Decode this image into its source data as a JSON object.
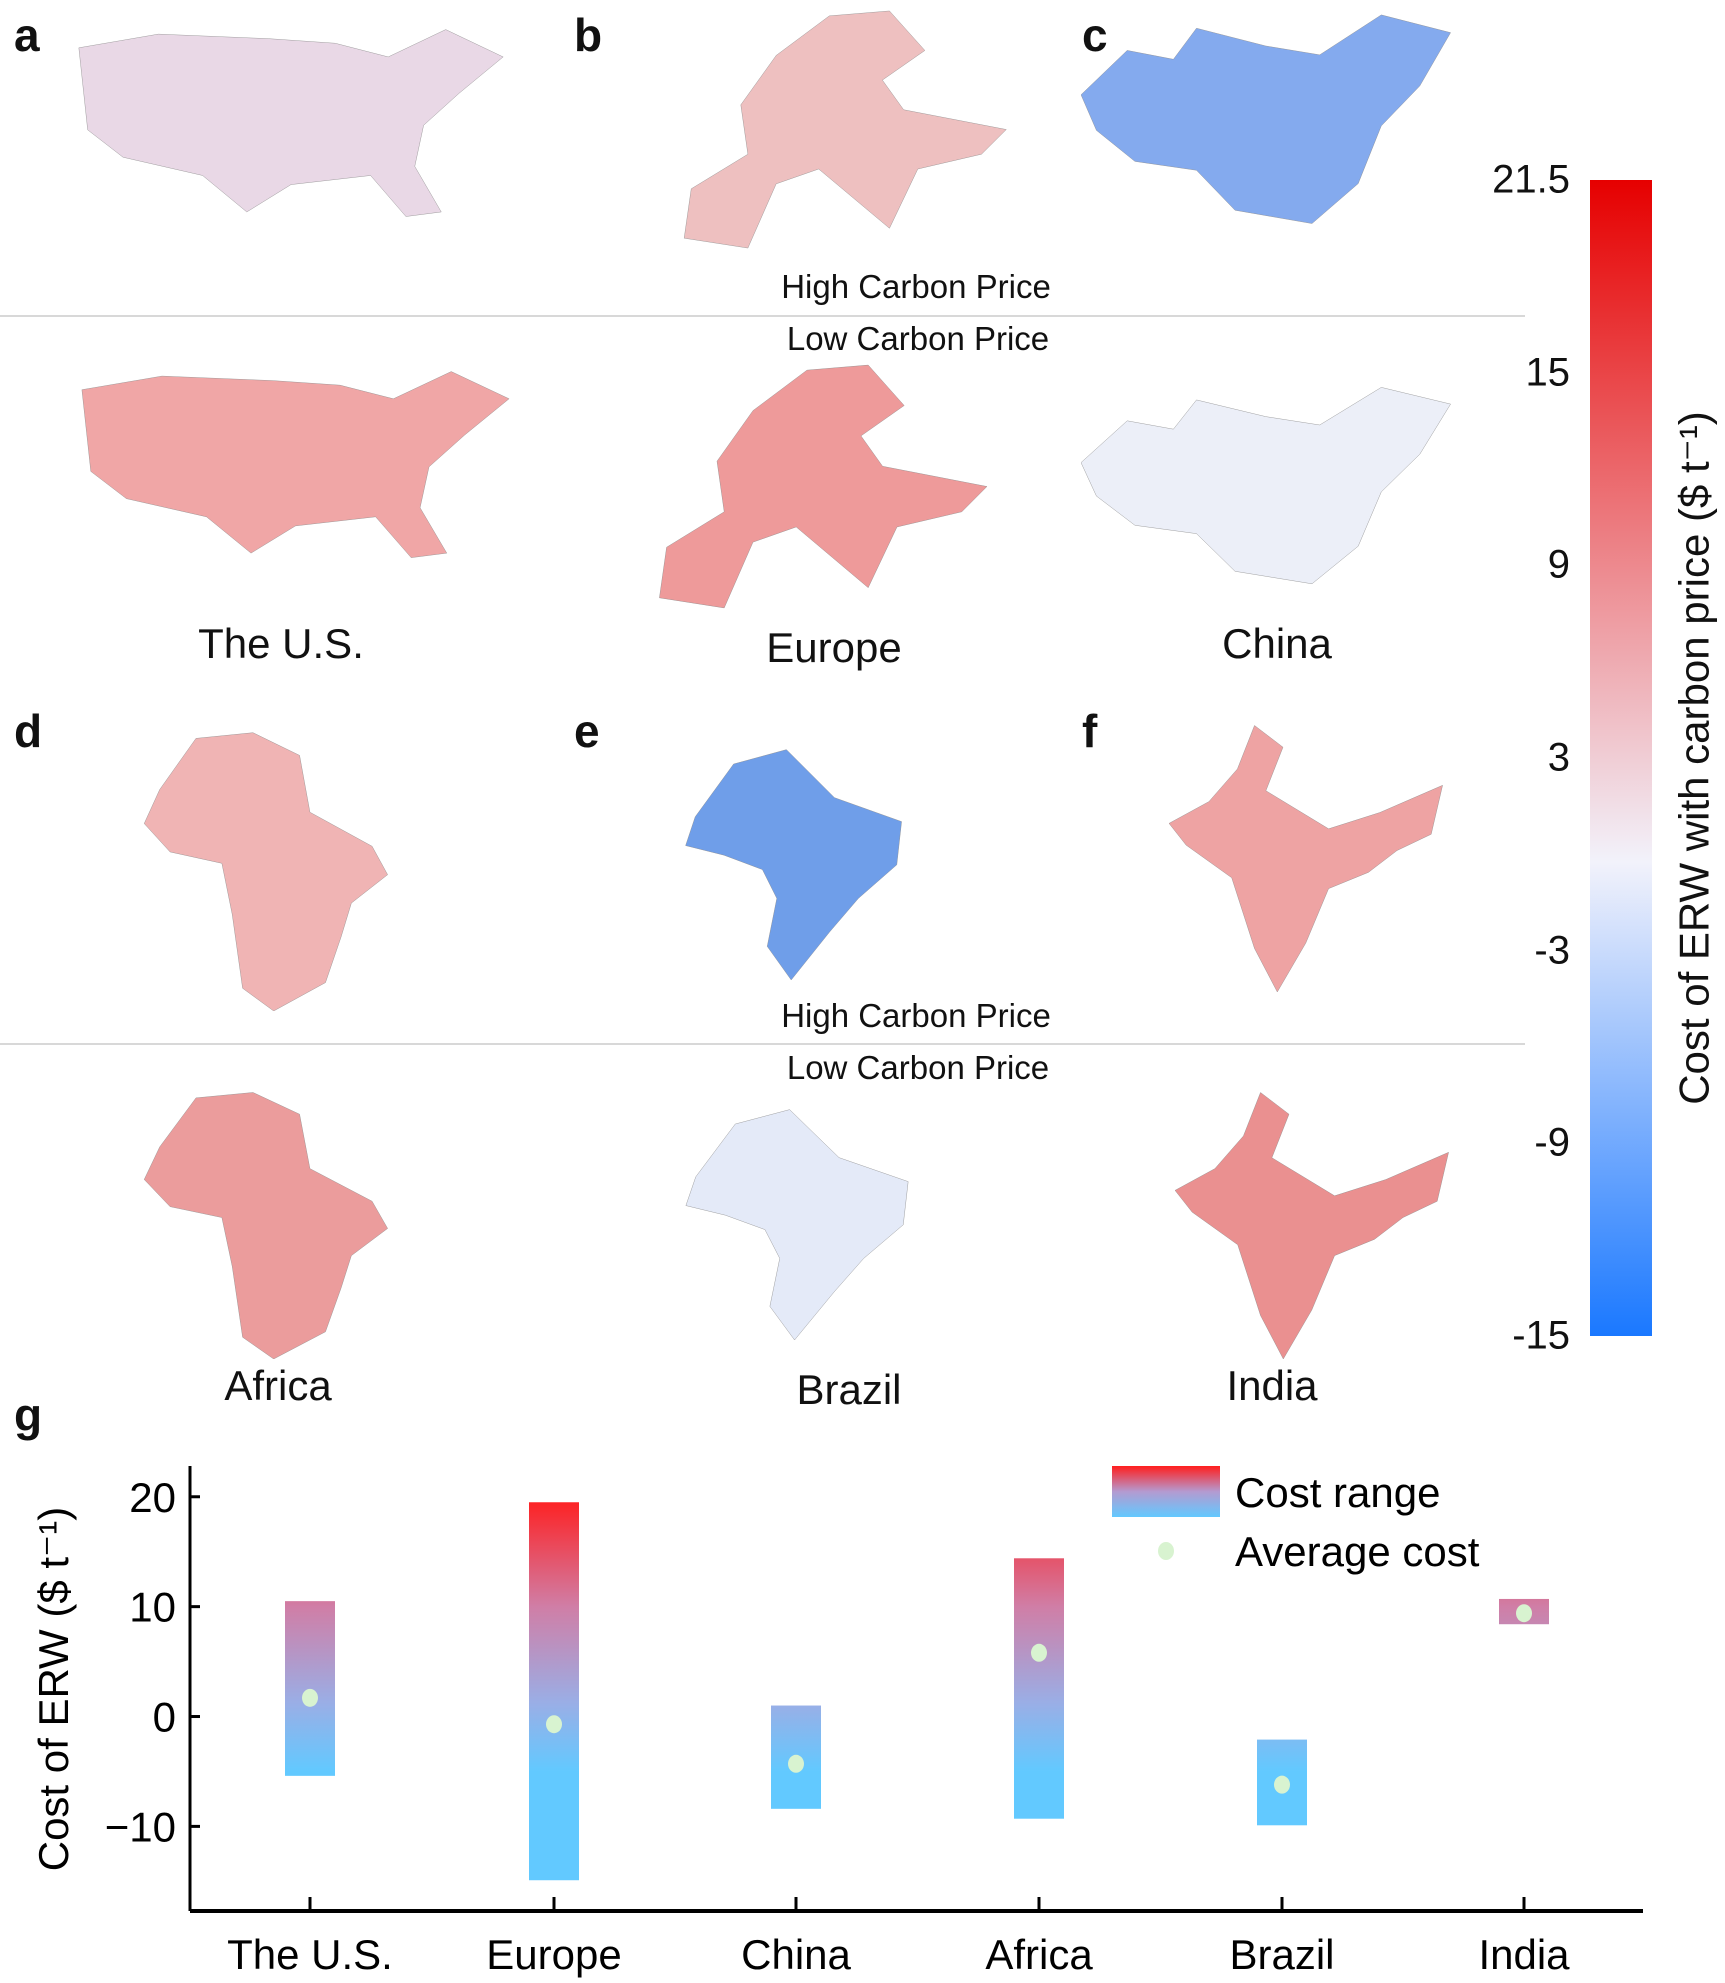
{
  "panel_labels": [
    "a",
    "b",
    "c",
    "d",
    "e",
    "f",
    "g"
  ],
  "scenarios": {
    "high": "High Carbon Price",
    "low": "Low Carbon Price"
  },
  "maps": [
    {
      "region": "The U.S.",
      "high_color": "#e9d8e6",
      "low_color": "#f0a6a6"
    },
    {
      "region": "Europe",
      "high_color": "#eec0c0",
      "low_color": "#ee9a9a"
    },
    {
      "region": "China",
      "high_color": "#84aaee",
      "low_color": "#eceff8"
    },
    {
      "region": "Africa",
      "high_color": "#f0b4b4",
      "low_color": "#eb9c9c"
    },
    {
      "region": "Brazil",
      "high_color": "#6f9ee9",
      "low_color": "#e4eaf8"
    },
    {
      "region": "India",
      "high_color": "#eea3a3",
      "low_color": "#ea9090"
    }
  ],
  "colorbar": {
    "label": "Cost of ERW with carbon price  ($ t⁻¹)",
    "ticks": [
      "21.5",
      "15",
      "9",
      "3",
      "-3",
      "-9",
      "-15"
    ],
    "colors": {
      "max": "#e60000",
      "mid": "#f2f2fb",
      "min": "#1a78ff"
    }
  },
  "chart_data": {
    "type": "bar",
    "title": "",
    "xlabel": "",
    "ylabel": "Cost of ERW ($ t⁻¹)",
    "ylim": [
      -17.7,
      22.8
    ],
    "yticks": [
      "20",
      "10",
      "0",
      "−10"
    ],
    "ytick_values": [
      20,
      10,
      0,
      -10
    ],
    "categories": [
      "The U.S.",
      "Europe",
      "China",
      "Africa",
      "Brazil",
      "India"
    ],
    "series": [
      {
        "name": "Cost range",
        "low": [
          -5.4,
          -14.9,
          -8.4,
          -9.3,
          -9.9,
          8.4
        ],
        "high": [
          10.5,
          19.5,
          1.0,
          14.4,
          -2.1,
          10.7
        ]
      },
      {
        "name": "Average cost",
        "values": [
          1.7,
          -0.7,
          -4.3,
          5.8,
          -6.2,
          9.4
        ]
      }
    ],
    "legend": "top-right",
    "colors": {
      "range_top": "#ff1e1e",
      "range_bottom": "#62c9ff",
      "average": "#d8f3d0"
    }
  }
}
